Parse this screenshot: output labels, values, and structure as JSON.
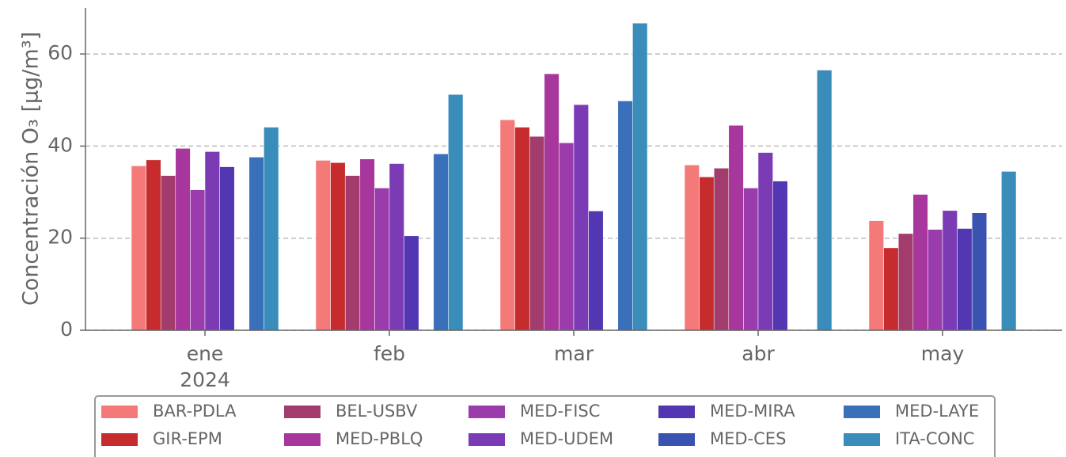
{
  "chart_data": {
    "type": "bar",
    "ylabel": "Concentración O₃ [μg/m³]",
    "categories": [
      "ene",
      "feb",
      "mar",
      "abr",
      "may"
    ],
    "year_label": "2024",
    "ylim": [
      0,
      70
    ],
    "yticks": [
      0,
      20,
      40,
      60
    ],
    "grid": true,
    "legend": "bottom",
    "series": [
      {
        "name": "BAR-PDLA",
        "color": "#f47a7a",
        "values": [
          35.7,
          36.9,
          45.7,
          35.9,
          23.8
        ]
      },
      {
        "name": "GIR-EPM",
        "color": "#c62b2e",
        "values": [
          37,
          36.4,
          44.1,
          33.3,
          17.9
        ]
      },
      {
        "name": "BEL-USBV",
        "color": "#a13c6c",
        "values": [
          33.6,
          33.6,
          42.1,
          35.2,
          21
        ]
      },
      {
        "name": "MED-PBLQ",
        "color": "#a7379c",
        "values": [
          39.5,
          37.2,
          55.7,
          44.5,
          29.5
        ]
      },
      {
        "name": "MED-FISC",
        "color": "#9b3cad",
        "values": [
          30.5,
          30.9,
          40.7,
          30.9,
          21.9
        ]
      },
      {
        "name": "MED-UDEM",
        "color": "#7b3bb5",
        "values": [
          38.8,
          36.2,
          49,
          38.6,
          26
        ]
      },
      {
        "name": "MED-MIRA",
        "color": "#5236b2",
        "values": [
          35.5,
          20.5,
          25.9,
          32.4,
          22.1
        ]
      },
      {
        "name": "MED-CES",
        "color": "#3a52b0",
        "values": [
          null,
          null,
          null,
          null,
          25.5
        ]
      },
      {
        "name": "MED-LAYE",
        "color": "#3a6fb9",
        "values": [
          37.6,
          38.3,
          49.8,
          null,
          null
        ]
      },
      {
        "name": "ITA-CONC",
        "color": "#3a8cba",
        "values": [
          44.1,
          51.2,
          66.7,
          56.5,
          34.5
        ]
      }
    ]
  }
}
